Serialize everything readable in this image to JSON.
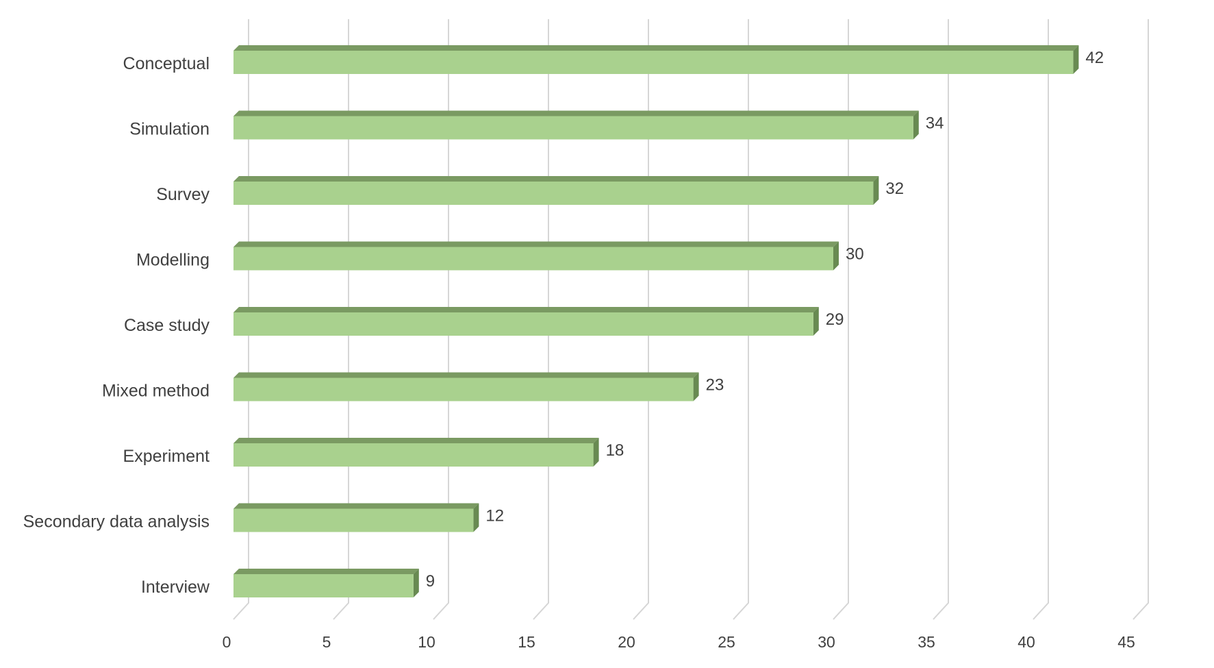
{
  "chart_data": {
    "type": "bar",
    "orientation": "horizontal",
    "style": "3d-clustered-bar",
    "categories": [
      "Conceptual",
      "Simulation",
      "Survey",
      "Modelling",
      "Case study",
      "Mixed method",
      "Experiment",
      "Secondary data analysis",
      "Interview"
    ],
    "values": [
      42,
      34,
      32,
      30,
      29,
      23,
      18,
      12,
      9
    ],
    "xlim": [
      0,
      45
    ],
    "x_ticks": [
      "0",
      "5",
      "10",
      "15",
      "20",
      "25",
      "30",
      "35",
      "40",
      "45"
    ],
    "data_labels": [
      "42",
      "34",
      "32",
      "30",
      "29",
      "23",
      "18",
      "12",
      "9"
    ],
    "grid": true,
    "legend": "none",
    "colors": {
      "bar_front": "#a9d18e",
      "bar_top": "#7a9a62",
      "bar_side": "#688a52",
      "gridline": "#d6d6d6",
      "text": "#404040"
    }
  }
}
